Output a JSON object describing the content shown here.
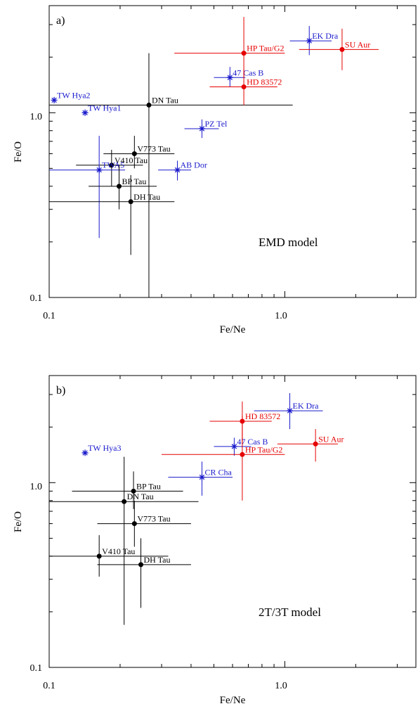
{
  "colors": {
    "black": "#000000",
    "blue": "#1a1acc",
    "red": "#e60000"
  },
  "chart_data": [
    {
      "type": "scatter",
      "panel_label": "a)",
      "annotation": "EMD model",
      "xlabel": "Fe/Ne",
      "ylabel": "Fe/O",
      "x_scale": "log",
      "y_scale": "log",
      "xlim": [
        0.1,
        3.6
      ],
      "ylim": [
        0.1,
        3.8
      ],
      "x_tick_labels": [
        "0.1",
        "1.0"
      ],
      "y_tick_labels": [
        "0.1",
        "1.0"
      ],
      "points": [
        {
          "label": "TW Hya2",
          "marker": "star",
          "color": "blue",
          "x": 0.105,
          "y": 1.17,
          "x_err": [
            0.105,
            0.105
          ],
          "y_err": [
            1.17,
            1.17
          ]
        },
        {
          "label": "TW Hya1",
          "marker": "star",
          "color": "blue",
          "x": 0.142,
          "y": 1.0,
          "x_err": [
            0.142,
            0.142
          ],
          "y_err": [
            1.0,
            1.0
          ]
        },
        {
          "label": "DN Tau",
          "marker": "circle",
          "color": "black",
          "x": 0.265,
          "y": 1.1,
          "x_err": [
            0.1,
            1.08
          ],
          "y_err": [
            0.1,
            2.1
          ]
        },
        {
          "label": "V773 Tau",
          "marker": "circle",
          "color": "black",
          "x": 0.23,
          "y": 0.6,
          "x_err": [
            0.17,
            0.34
          ],
          "y_err": [
            0.5,
            0.75
          ]
        },
        {
          "label": "V410 Tau",
          "marker": "circle",
          "color": "black",
          "x": 0.184,
          "y": 0.52,
          "x_err": [
            0.13,
            0.25
          ],
          "y_err": [
            0.4,
            0.63
          ]
        },
        {
          "label": "TWA5",
          "marker": "star",
          "color": "blue",
          "x": 0.163,
          "y": 0.49,
          "x_err": [
            0.1,
            0.21
          ],
          "y_err": [
            0.21,
            0.75
          ]
        },
        {
          "label": "BP Tau",
          "marker": "circle",
          "color": "black",
          "x": 0.198,
          "y": 0.4,
          "x_err": [
            0.147,
            0.286
          ],
          "y_err": [
            0.3,
            0.52
          ]
        },
        {
          "label": "DH Tau",
          "marker": "circle",
          "color": "black",
          "x": 0.222,
          "y": 0.33,
          "x_err": [
            0.1,
            0.34
          ],
          "y_err": [
            0.17,
            0.46
          ]
        },
        {
          "label": "AB Dor",
          "marker": "star",
          "color": "blue",
          "x": 0.35,
          "y": 0.49,
          "x_err": [
            0.29,
            0.4
          ],
          "y_err": [
            0.43,
            0.55
          ]
        },
        {
          "label": "PZ Tel",
          "marker": "star",
          "color": "blue",
          "x": 0.445,
          "y": 0.82,
          "x_err": [
            0.375,
            0.525
          ],
          "y_err": [
            0.73,
            0.92
          ]
        },
        {
          "label": "47 Cas B",
          "marker": "star",
          "color": "blue",
          "x": 0.585,
          "y": 1.55,
          "x_err": [
            0.5,
            0.68
          ],
          "y_err": [
            1.38,
            1.77
          ]
        },
        {
          "label": "HD 83572",
          "marker": "circle",
          "color": "red",
          "x": 0.67,
          "y": 1.38,
          "x_err": [
            0.48,
            0.93
          ],
          "y_err": [
            1.1,
            1.72
          ]
        },
        {
          "label": "HP Tau/G2",
          "marker": "circle",
          "color": "red",
          "x": 0.67,
          "y": 2.1,
          "x_err": [
            0.34,
            1.0
          ],
          "y_err": [
            1.55,
            3.3
          ]
        },
        {
          "label": "EK Dra",
          "marker": "star",
          "color": "blue",
          "x": 1.27,
          "y": 2.45,
          "x_err": [
            1.05,
            1.58
          ],
          "y_err": [
            2.05,
            2.95
          ]
        },
        {
          "label": "SU Aur",
          "marker": "circle",
          "color": "red",
          "x": 1.75,
          "y": 2.2,
          "x_err": [
            1.15,
            2.5
          ],
          "y_err": [
            1.7,
            2.85
          ]
        }
      ]
    },
    {
      "type": "scatter",
      "panel_label": "b)",
      "annotation": "2T/3T model",
      "xlabel": "Fe/Ne",
      "ylabel": "Fe/O",
      "x_scale": "log",
      "y_scale": "log",
      "xlim": [
        0.1,
        3.6
      ],
      "ylim": [
        0.1,
        3.8
      ],
      "x_tick_labels": [
        "0.1",
        "1.0"
      ],
      "y_tick_labels": [
        "0.1",
        "1.0"
      ],
      "points": [
        {
          "label": "TW Hya3",
          "marker": "star",
          "color": "blue",
          "x": 0.142,
          "y": 1.45,
          "x_err": [
            0.142,
            0.142
          ],
          "y_err": [
            1.45,
            1.45
          ]
        },
        {
          "label": "BP Tau",
          "marker": "circle",
          "color": "black",
          "x": 0.228,
          "y": 0.9,
          "x_err": [
            0.125,
            0.37
          ],
          "y_err": [
            0.72,
            1.15
          ]
        },
        {
          "label": "DN Tau",
          "marker": "circle",
          "color": "black",
          "x": 0.208,
          "y": 0.79,
          "x_err": [
            0.1,
            0.43
          ],
          "y_err": [
            0.17,
            1.38
          ]
        },
        {
          "label": "V773 Tau",
          "marker": "circle",
          "color": "black",
          "x": 0.23,
          "y": 0.6,
          "x_err": [
            0.16,
            0.4
          ],
          "y_err": [
            0.45,
            0.8
          ]
        },
        {
          "label": "V410 Tau",
          "marker": "circle",
          "color": "black",
          "x": 0.163,
          "y": 0.4,
          "x_err": [
            0.1,
            0.32
          ],
          "y_err": [
            0.31,
            0.52
          ]
        },
        {
          "label": "DH Tau",
          "marker": "circle",
          "color": "black",
          "x": 0.245,
          "y": 0.36,
          "x_err": [
            0.16,
            0.4
          ],
          "y_err": [
            0.21,
            0.5
          ]
        },
        {
          "label": "CR Cha",
          "marker": "star",
          "color": "blue",
          "x": 0.445,
          "y": 1.07,
          "x_err": [
            0.32,
            0.6
          ],
          "y_err": [
            0.85,
            1.3
          ]
        },
        {
          "label": "47 Cas B",
          "marker": "star",
          "color": "blue",
          "x": 0.61,
          "y": 1.57,
          "x_err": [
            0.5,
            0.72
          ],
          "y_err": [
            1.4,
            1.75
          ]
        },
        {
          "label": "HP Tau/G2",
          "marker": "circle",
          "color": "red",
          "x": 0.66,
          "y": 1.42,
          "x_err": [
            0.3,
            1.0
          ],
          "y_err": [
            0.8,
            2.3
          ]
        },
        {
          "label": "HD 83572",
          "marker": "circle",
          "color": "red",
          "x": 0.66,
          "y": 2.15,
          "x_err": [
            0.48,
            0.88
          ],
          "y_err": [
            1.62,
            2.75
          ]
        },
        {
          "label": "EK Dra",
          "marker": "star",
          "color": "blue",
          "x": 1.05,
          "y": 2.45,
          "x_err": [
            0.74,
            1.45
          ],
          "y_err": [
            1.95,
            3.05
          ]
        },
        {
          "label": "SU Aur",
          "marker": "circle",
          "color": "red",
          "x": 1.35,
          "y": 1.62,
          "x_err": [
            0.93,
            1.68
          ],
          "y_err": [
            1.3,
            1.95
          ]
        }
      ]
    }
  ]
}
